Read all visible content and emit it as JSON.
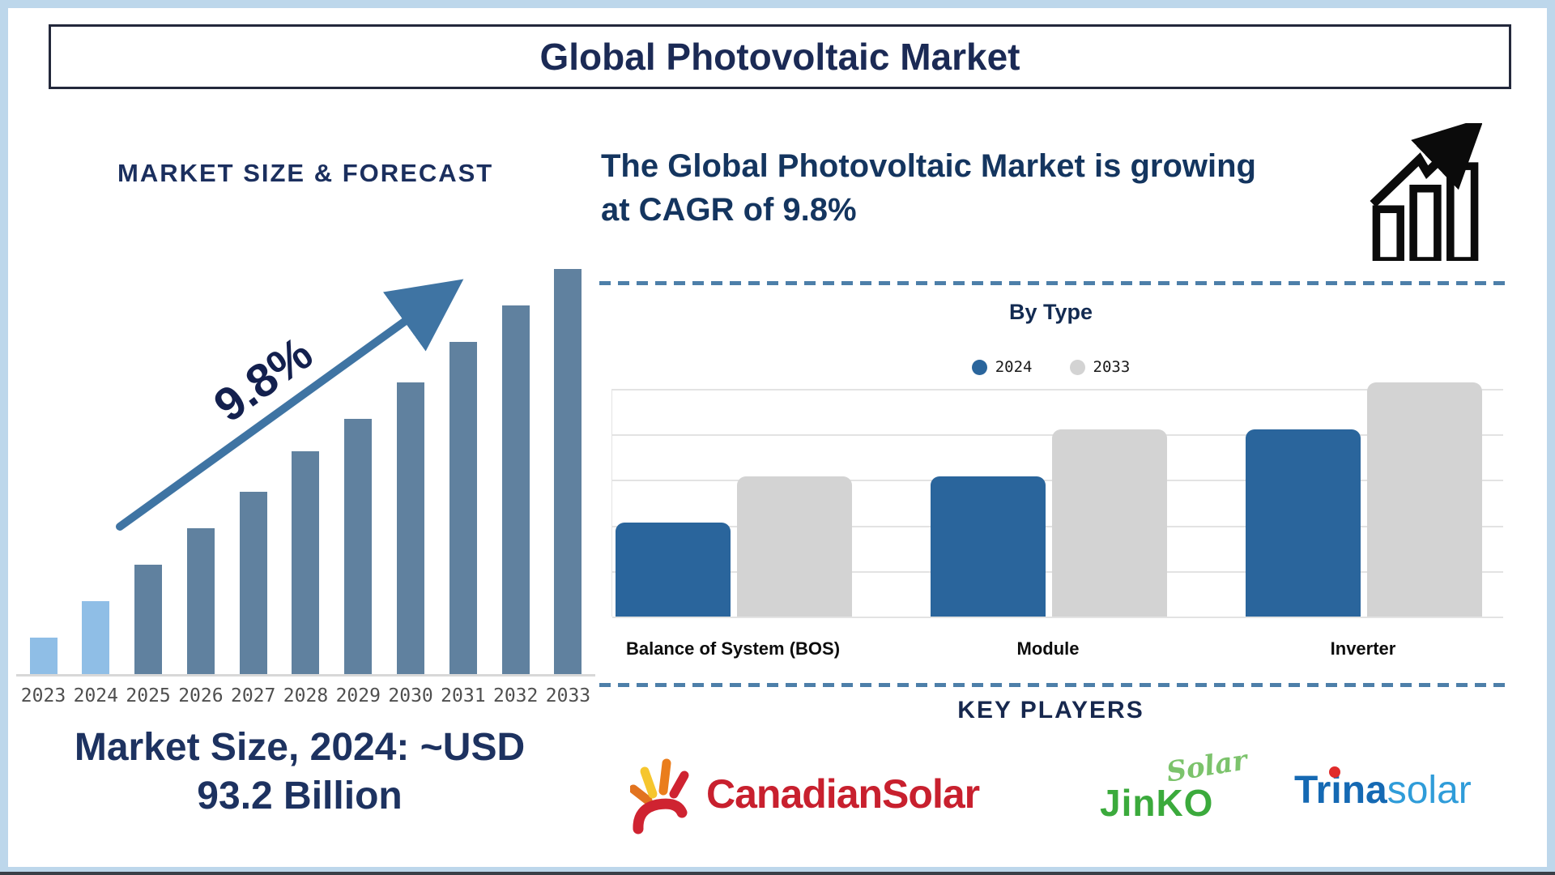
{
  "page": {
    "title": "Global Photovoltaic Market"
  },
  "left": {
    "heading": "MARKET SIZE & FORECAST",
    "cagr_label": "9.8%",
    "market_size_lines": [
      "Market Size, 2024: ~USD",
      "93.2 Billion"
    ]
  },
  "right": {
    "growth_lines": [
      "The Global Photovoltaic Market is growing",
      "at CAGR of 9.8%"
    ],
    "by_type_title": "By Type",
    "key_players_title": "KEY PLAYERS",
    "logos": [
      {
        "name": "Canadian Solar",
        "text": "CanadianSolar"
      },
      {
        "name": "JinKO Solar",
        "script": "Solar",
        "text": "JinKO"
      },
      {
        "name": "Trina Solar",
        "text_bold_1": "Tr",
        "text_i": "i",
        "text_bold_2": "na",
        "text_light": "solar"
      }
    ]
  },
  "colors": {
    "navy_text": "#1b2f5e",
    "frame_blue": "#bdd7eb",
    "arrow_blue": "#3f74a3",
    "dashed_line": "#4d7fa9",
    "forecast_bar_light": "#8fbee6",
    "forecast_bar_dark": "#60819f",
    "bytype_2024_blue": "#2a659c",
    "bytype_2033_gray": "#d3d3d3",
    "gridline": "#e3e3e3",
    "canadian_red": "#c8202e",
    "jinko_green": "#3baa3c",
    "jinko_script_green": "#7cc36c",
    "trina_blue": "#1569b3",
    "trina_light_blue": "#2f9cd9",
    "trina_dot_red": "#e02b2b"
  },
  "chart_data": [
    {
      "type": "bar",
      "title": "MARKET SIZE & FORECAST",
      "categories": [
        "2023",
        "2024",
        "2025",
        "2026",
        "2027",
        "2028",
        "2029",
        "2030",
        "2031",
        "2032",
        "2033"
      ],
      "values": [
        9,
        18,
        27,
        36,
        45,
        55,
        63,
        72,
        82,
        91,
        100
      ],
      "unit": "relative bar height, % of 2033 bar (no y-axis shown)",
      "bar_colors": [
        "#8fbee6",
        "#8fbee6",
        "#60819f",
        "#60819f",
        "#60819f",
        "#60819f",
        "#60819f",
        "#60819f",
        "#60819f",
        "#60819f",
        "#60819f"
      ],
      "annotations": [
        "9.8% growth arrow"
      ],
      "known_point": {
        "year": "2024",
        "value": "~USD 93.2 Billion"
      },
      "xlabel": "",
      "ylabel": "",
      "grid": false
    },
    {
      "type": "bar",
      "title": "By Type",
      "categories": [
        "Balance of System (BOS)",
        "Module",
        "Inverter"
      ],
      "series": [
        {
          "name": "2024",
          "color": "#2a659c",
          "values": [
            40,
            60,
            80
          ]
        },
        {
          "name": "2033",
          "color": "#d3d3d3",
          "values": [
            60,
            80,
            100
          ]
        }
      ],
      "unit": "relative bar height, % of max bar (no y-axis shown)",
      "legend_position": "top",
      "grid": true,
      "xlabel": "",
      "ylabel": ""
    }
  ]
}
